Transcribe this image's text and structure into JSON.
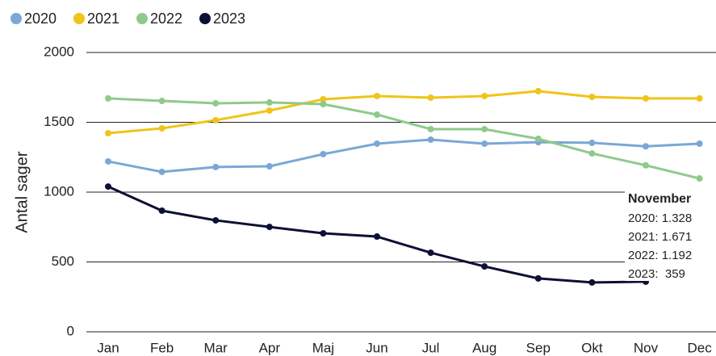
{
  "chart_data": {
    "type": "line",
    "y_label": "Antal sager",
    "categories": [
      "Jan",
      "Feb",
      "Mar",
      "Apr",
      "Maj",
      "Jun",
      "Jul",
      "Aug",
      "Sep",
      "Okt",
      "Nov",
      "Dec"
    ],
    "series": [
      {
        "name": "2020",
        "color": "#7ba7d6",
        "values": [
          1220,
          1145,
          1180,
          1185,
          1272,
          1347,
          1376,
          1347,
          1358,
          1353,
          1328,
          1347
        ]
      },
      {
        "name": "2021",
        "color": "#f0c419",
        "values": [
          1422,
          1457,
          1515,
          1584,
          1665,
          1688,
          1676,
          1688,
          1723,
          1682,
          1671,
          1671
        ]
      },
      {
        "name": "2022",
        "color": "#8fca8a",
        "values": [
          1671,
          1653,
          1636,
          1642,
          1630,
          1555,
          1451,
          1451,
          1382,
          1277,
          1192,
          1098
        ]
      },
      {
        "name": "2023",
        "color": "#0d1033",
        "values": [
          1040,
          867,
          798,
          751,
          705,
          682,
          566,
          468,
          382,
          353,
          359,
          null
        ]
      }
    ],
    "ylim": [
      0,
      2000
    ],
    "yticks": [
      0,
      500,
      1000,
      1500,
      2000
    ],
    "grid": true,
    "legend": "top-left",
    "annotation": {
      "title": "November",
      "lines": [
        "2020: 1.328",
        "2021: 1.671",
        "2022: 1.192",
        "2023:  359"
      ]
    }
  }
}
